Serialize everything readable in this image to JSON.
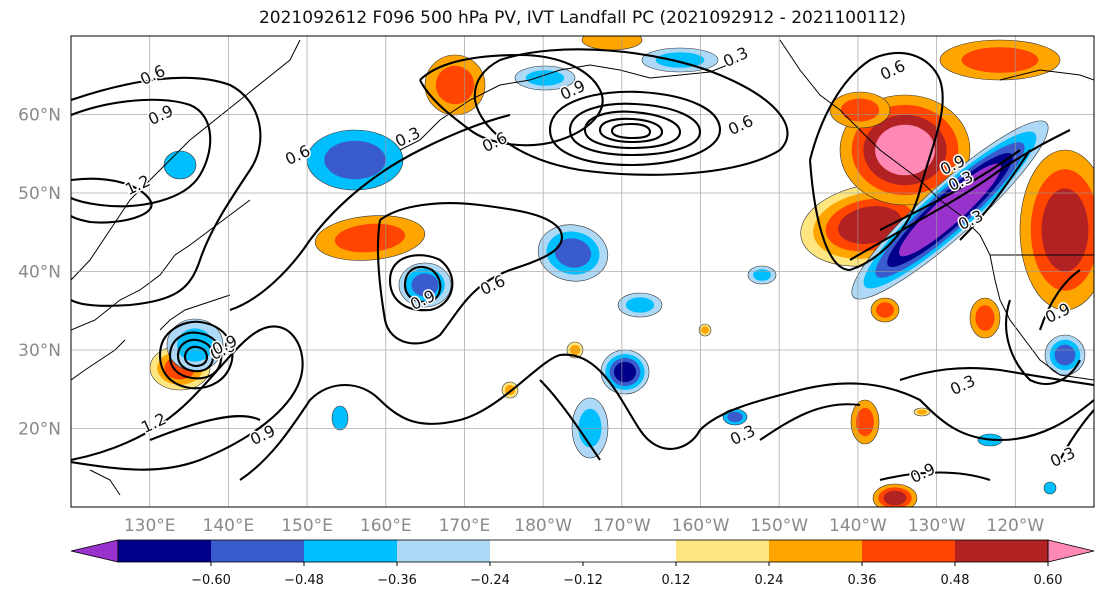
{
  "title": "2021092612 F096 500 hPa PV, IVT Landfall PC (2021092912 - 2021100112)",
  "lon_labels": [
    "130°E",
    "140°E",
    "150°E",
    "160°E",
    "170°E",
    "180°W",
    "170°W",
    "160°W",
    "150°W",
    "140°W",
    "130°W",
    "120°W"
  ],
  "lat_labels": [
    "60°N",
    "50°N",
    "40°N",
    "30°N",
    "20°N"
  ],
  "colorbar": {
    "colors": [
      "#9932CC",
      "#00008B",
      "#3A5BCC",
      "#00BFFF",
      "#ADD8F6",
      "#FFFFFF",
      "#FFFFFF",
      "#FFE680",
      "#FFA500",
      "#FF4500",
      "#B22222",
      "#FF89B4"
    ],
    "tick_labels": [
      "−0.60",
      "−0.48",
      "−0.36",
      "−0.24",
      "−0.12",
      "0.12",
      "0.24",
      "0.36",
      "0.48",
      "0.60"
    ]
  },
  "contour_labels": [
    "0.6",
    "0.9",
    "1.2",
    "0.6",
    "0.9",
    "0.6",
    "0.9",
    "0.6",
    "0.3",
    "0.3",
    "0.6",
    "1.2",
    "0.9",
    "0.6",
    "0.9",
    "0.3",
    "0.9",
    "0.3",
    "0.3",
    "0.9",
    "0.3",
    "0.3",
    "0.6",
    "0.9"
  ],
  "chart_data": {
    "type": "map",
    "projection": "plate carree",
    "lon_range": [
      120,
      250
    ],
    "lat_range": [
      10,
      70
    ],
    "grid": true,
    "variables": [
      "500 hPa PV (black contours)",
      "IVT Landfall PC (shaded)"
    ],
    "contour_levels": [
      0.3,
      0.6,
      0.9,
      1.2
    ],
    "shading_levels": [
      -0.6,
      -0.48,
      -0.36,
      -0.24,
      -0.12,
      0.12,
      0.24,
      0.36,
      0.48,
      0.6
    ],
    "colorbar_extend": "both"
  }
}
